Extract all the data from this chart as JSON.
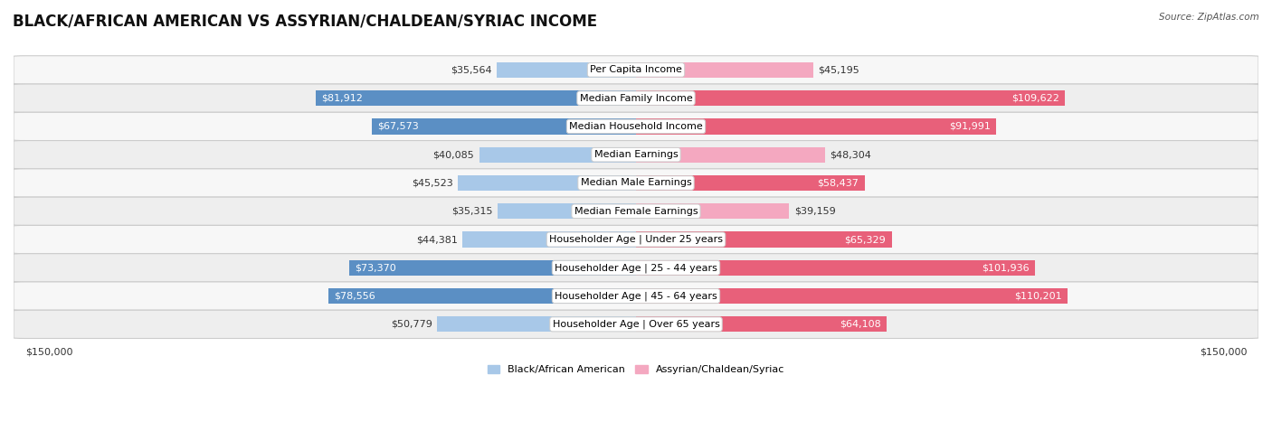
{
  "title": "BLACK/AFRICAN AMERICAN VS ASSYRIAN/CHALDEAN/SYRIAC INCOME",
  "source": "Source: ZipAtlas.com",
  "categories": [
    "Per Capita Income",
    "Median Family Income",
    "Median Household Income",
    "Median Earnings",
    "Median Male Earnings",
    "Median Female Earnings",
    "Householder Age | Under 25 years",
    "Householder Age | 25 - 44 years",
    "Householder Age | 45 - 64 years",
    "Householder Age | Over 65 years"
  ],
  "black_values": [
    35564,
    81912,
    67573,
    40085,
    45523,
    35315,
    44381,
    73370,
    78556,
    50779
  ],
  "assyrian_values": [
    45195,
    109622,
    91991,
    48304,
    58437,
    39159,
    65329,
    101936,
    110201,
    64108
  ],
  "black_light_color": "#A8C8E8",
  "black_dark_color": "#5B8FC4",
  "assyrian_light_color": "#F4A8C0",
  "assyrian_dark_color": "#E8607A",
  "dark_threshold": 55000,
  "max_value": 150000,
  "x_label_left": "$150,000",
  "x_label_right": "$150,000",
  "legend_black": "Black/African American",
  "legend_assyrian": "Assyrian/Chaldean/Syriac",
  "background_color": "#ffffff",
  "row_bg_even": "#f7f7f7",
  "row_bg_odd": "#eeeeee",
  "title_fontsize": 12,
  "bar_height": 0.55,
  "label_fontsize": 8.0,
  "value_fontsize": 8.0
}
